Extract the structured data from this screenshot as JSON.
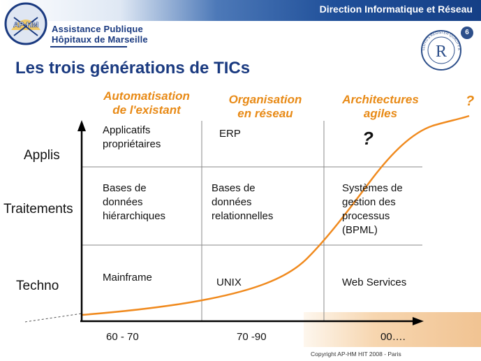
{
  "header": {
    "banner_title": "Direction Informatique et Réseau",
    "org_line1": "Assistance Publique",
    "org_line2": "Hôpitaux de Marseille",
    "logo_text": "AP·HM",
    "page_badge": "6",
    "seal_letter": "R",
    "seal_text": "LLOYD'S REGISTER QUALITY ASSURANCE"
  },
  "slide": {
    "title": "Les trois générations de TICs"
  },
  "columns": [
    {
      "line1": "Automatisation",
      "line2": "de l'existant"
    },
    {
      "line1": "Organisation",
      "line2": "en réseau"
    },
    {
      "line1": "Architectures",
      "line2": "agiles"
    }
  ],
  "future_mark": "?",
  "rows": [
    {
      "label": "Applis"
    },
    {
      "label": "Traitements"
    },
    {
      "label": "Techno"
    }
  ],
  "cells": {
    "applis": [
      [
        "Applicatifs",
        "propriétaires"
      ],
      [
        "ERP"
      ],
      [
        "?"
      ]
    ],
    "traitements": [
      [
        "Bases de",
        "données",
        "hiérarchiques"
      ],
      [
        "Bases de",
        "données",
        "relationnelles"
      ],
      [
        "Systèmes de",
        "gestion des",
        "processus",
        "(BPML)"
      ]
    ],
    "techno": [
      [
        "Mainframe"
      ],
      [
        "UNIX"
      ],
      [
        "Web Services"
      ]
    ]
  },
  "x_ticks": [
    "60 - 70",
    "70 -90",
    "00…."
  ],
  "footer": {
    "copyright": "Copyright AP-HM   HIT  2008 - Paris"
  },
  "colors": {
    "accent_orange": "#e88a16",
    "title_blue": "#1a3a80",
    "curve_orange": "#f08a1e"
  }
}
